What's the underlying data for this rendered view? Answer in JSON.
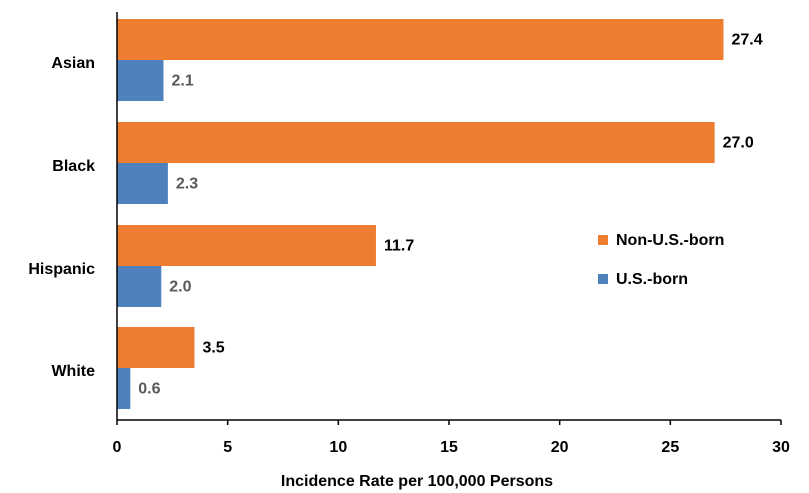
{
  "chart_data": {
    "type": "bar",
    "orientation": "horizontal",
    "title": "",
    "xlabel": "Incidence Rate per 100,000 Persons",
    "ylabel": "",
    "categories": [
      "Asian",
      "Black",
      "Hispanic",
      "White"
    ],
    "series": [
      {
        "name": "Non-U.S.-born",
        "values": [
          27.4,
          27.0,
          11.7,
          3.5
        ],
        "color": "#ED7D31"
      },
      {
        "name": "U.S.-born",
        "values": [
          2.1,
          2.3,
          2.0,
          0.6
        ],
        "color": "#4F81BD"
      }
    ],
    "value_labels": {
      "Non-U.S.-born": [
        "27.4",
        "27.0",
        "11.7",
        "3.5"
      ],
      "U.S.-born": [
        "2.1",
        "2.3",
        "2.0",
        "0.6"
      ]
    },
    "xlim": [
      0,
      30
    ],
    "xticks": [
      "0",
      "5",
      "10",
      "15",
      "20",
      "25",
      "30"
    ],
    "grid": false,
    "legend": "center-right"
  },
  "colors": {
    "non_us_born": "#ED7D31",
    "us_born": "#4F81BD",
    "axis": "#000000",
    "value_text_dark": "#000000",
    "value_text_gray": "#595959"
  }
}
